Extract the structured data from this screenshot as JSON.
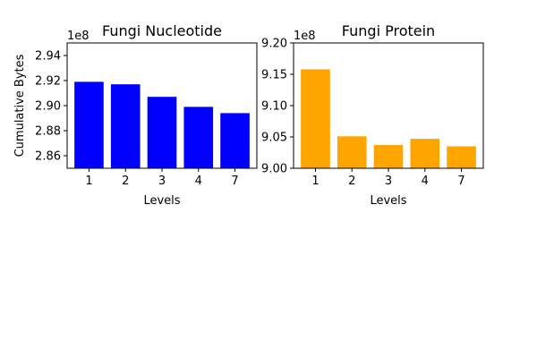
{
  "chart_data": [
    {
      "type": "bar",
      "title": "Fungi Nucleotide",
      "xlabel": "Levels",
      "ylabel": "Cumulative Bytes",
      "offset_label": "1e8",
      "categories": [
        "1",
        "2",
        "3",
        "4",
        "7"
      ],
      "values": [
        2.919,
        2.917,
        2.907,
        2.899,
        2.894
      ],
      "ylim": [
        2.85,
        2.95
      ],
      "yticks": [
        2.86,
        2.88,
        2.9,
        2.92,
        2.94
      ],
      "ytick_labels": [
        "2.86",
        "2.88",
        "2.90",
        "2.92",
        "2.94"
      ],
      "color": "#0000ff",
      "grid": false
    },
    {
      "type": "bar",
      "title": "Fungi Protein",
      "xlabel": "Levels",
      "ylabel": "",
      "offset_label": "1e8",
      "categories": [
        "1",
        "2",
        "3",
        "4",
        "7"
      ],
      "values": [
        9.158,
        9.051,
        9.037,
        9.047,
        9.035
      ],
      "ylim": [
        9.0,
        9.2
      ],
      "yticks": [
        9.0,
        9.05,
        9.1,
        9.15,
        9.2
      ],
      "ytick_labels": [
        "9.00",
        "9.05",
        "9.10",
        "9.15",
        "9.20"
      ],
      "color": "#ffa500",
      "grid": false
    }
  ]
}
